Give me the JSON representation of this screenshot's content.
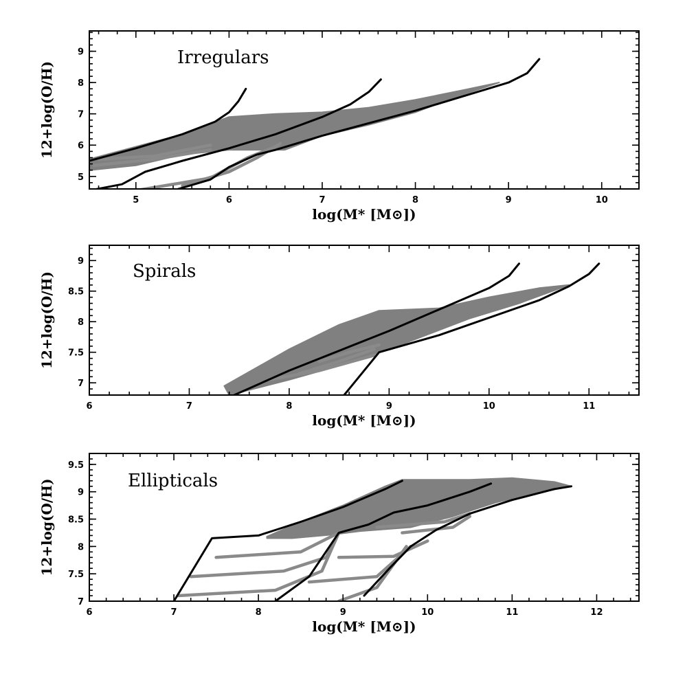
{
  "chart_data": [
    {
      "type": "line",
      "title": "Irregulars",
      "xlabel": "log(M* [M⊙])",
      "ylabel": "12+log(O/H)",
      "xlim": [
        4.5,
        10.4
      ],
      "ylim": [
        4.6,
        9.65
      ],
      "xticks": [
        5,
        6,
        7,
        8,
        9,
        10
      ],
      "yticks": [
        5,
        6,
        7,
        8,
        9
      ],
      "legend": "none",
      "series": [
        {
          "name": "track-1",
          "color": "#000000",
          "x": [
            4.5,
            5.0,
            5.5,
            5.85,
            6.0,
            6.1,
            6.18
          ],
          "y": [
            5.5,
            5.9,
            6.35,
            6.75,
            7.05,
            7.4,
            7.8
          ]
        },
        {
          "name": "track-2",
          "color": "#000000",
          "x": [
            4.5,
            4.85,
            5.1,
            5.5,
            6.0,
            6.5,
            7.0,
            7.3,
            7.5,
            7.63
          ],
          "y": [
            4.55,
            4.75,
            5.15,
            5.5,
            5.9,
            6.35,
            6.9,
            7.3,
            7.7,
            8.1
          ]
        },
        {
          "name": "track-3",
          "color": "#000000",
          "x": [
            5.4,
            5.8,
            6.0,
            6.3,
            6.5,
            7.0,
            8.0,
            9.0,
            9.2,
            9.33
          ],
          "y": [
            4.55,
            4.9,
            5.3,
            5.7,
            5.85,
            6.3,
            7.1,
            8.0,
            8.3,
            8.75
          ]
        },
        {
          "name": "grey-track-1",
          "color": "#8a8a8a",
          "x": [
            4.55,
            5.2,
            5.8
          ],
          "y": [
            5.35,
            5.55,
            5.85
          ]
        },
        {
          "name": "grey-track-2",
          "color": "#8a8a8a",
          "x": [
            4.6,
            5.2,
            5.8
          ],
          "y": [
            5.55,
            5.65,
            6.0
          ]
        },
        {
          "name": "grey-track-3",
          "color": "#8a8a8a",
          "x": [
            5.0,
            5.8,
            6.2,
            6.5
          ],
          "y": [
            4.55,
            4.95,
            5.6,
            5.95
          ]
        },
        {
          "name": "grey-track-4",
          "color": "#8a8a8a",
          "x": [
            5.5,
            6.0,
            6.3,
            6.55
          ],
          "y": [
            4.7,
            5.15,
            5.6,
            6.05
          ]
        }
      ],
      "bands": [
        {
          "name": "grey-envelope",
          "color": "#808080",
          "x": [
            4.5,
            5.5,
            6.0,
            6.5,
            7.0,
            7.5,
            8.0,
            8.5,
            8.9,
            8.4,
            8.0,
            7.5,
            7.0,
            6.6,
            6.0,
            5.5,
            5.0,
            4.5
          ],
          "y": [
            5.55,
            6.35,
            6.9,
            7.0,
            7.05,
            7.2,
            7.45,
            7.75,
            8.0,
            7.5,
            7.05,
            6.65,
            6.3,
            5.85,
            5.85,
            5.7,
            5.35,
            5.2
          ]
        }
      ]
    },
    {
      "type": "line",
      "title": "Spirals",
      "xlabel": "log(M* [M⊙])",
      "ylabel": "12+log(O/H)",
      "xlim": [
        6,
        11.5
      ],
      "ylim": [
        6.8,
        9.25
      ],
      "xticks": [
        6,
        7,
        8,
        9,
        10,
        11
      ],
      "yticks": [
        7,
        7.5,
        8,
        8.5,
        9
      ],
      "ytick_labels": [
        "7",
        "7.5",
        "8",
        "8.5",
        "9"
      ],
      "legend": "none",
      "series": [
        {
          "name": "track-1",
          "color": "#000000",
          "x": [
            7.45,
            8.0,
            9.0,
            10.0,
            10.2,
            10.3
          ],
          "y": [
            6.8,
            7.2,
            7.85,
            8.55,
            8.75,
            8.95
          ]
        },
        {
          "name": "track-2",
          "color": "#000000",
          "x": [
            8.55,
            8.9,
            9.5,
            10.5,
            10.8,
            11.0,
            11.1
          ],
          "y": [
            6.8,
            7.5,
            7.78,
            8.35,
            8.58,
            8.78,
            8.95
          ]
        },
        {
          "name": "grey-track-1",
          "color": "#8a8a8a",
          "x": [
            7.8,
            8.3,
            8.85
          ],
          "y": [
            7.05,
            7.2,
            7.45
          ]
        },
        {
          "name": "grey-track-2",
          "color": "#8a8a8a",
          "x": [
            8.1,
            8.5,
            8.85
          ],
          "y": [
            7.15,
            7.35,
            7.55
          ]
        },
        {
          "name": "grey-track-3",
          "color": "#8a8a8a",
          "x": [
            8.3,
            8.6,
            8.9
          ],
          "y": [
            7.35,
            7.5,
            7.62
          ]
        }
      ],
      "bands": [
        {
          "name": "grey-envelope",
          "color": "#808080",
          "x": [
            7.35,
            8.0,
            8.5,
            8.9,
            9.5,
            10.0,
            10.5,
            10.8,
            10.3,
            9.8,
            9.0,
            8.5,
            8.0,
            7.4
          ],
          "y": [
            6.95,
            7.55,
            7.95,
            8.18,
            8.22,
            8.4,
            8.55,
            8.6,
            8.3,
            8.05,
            7.55,
            7.28,
            7.05,
            6.8
          ]
        }
      ]
    },
    {
      "type": "line",
      "title": "Ellipticals",
      "xlabel": "log(M* [M⊙])",
      "ylabel": "12+log(O/H)",
      "xlim": [
        6,
        12.5
      ],
      "ylim": [
        7.0,
        9.7
      ],
      "xticks": [
        6,
        7,
        8,
        9,
        10,
        11,
        12
      ],
      "yticks": [
        7,
        7.5,
        8,
        8.5,
        9,
        9.5
      ],
      "ytick_labels": [
        "7",
        "7.5",
        "8",
        "8.5",
        "9",
        "9.5"
      ],
      "legend": "none",
      "series": [
        {
          "name": "track-1",
          "color": "#000000",
          "x": [
            7.0,
            7.45,
            8.0,
            8.3,
            8.5,
            9.0,
            9.5,
            9.7
          ],
          "y": [
            7.0,
            8.15,
            8.2,
            8.35,
            8.45,
            8.72,
            9.05,
            9.2
          ]
        },
        {
          "name": "track-2",
          "color": "#000000",
          "x": [
            8.2,
            8.6,
            8.95,
            9.3,
            9.6,
            10.0,
            10.5,
            10.75
          ],
          "y": [
            7.0,
            7.45,
            8.25,
            8.4,
            8.62,
            8.75,
            9.0,
            9.15
          ]
        },
        {
          "name": "track-3",
          "color": "#000000",
          "x": [
            9.25,
            9.55,
            9.8,
            10.1,
            10.5,
            11.0,
            11.5,
            11.7
          ],
          "y": [
            7.1,
            7.6,
            8.0,
            8.3,
            8.6,
            8.85,
            9.05,
            9.1
          ]
        },
        {
          "name": "grey-track-1",
          "color": "#8a8a8a",
          "x": [
            7.5,
            8.5,
            8.95
          ],
          "y": [
            7.8,
            7.9,
            8.25
          ]
        },
        {
          "name": "grey-track-2",
          "color": "#8a8a8a",
          "x": [
            7.2,
            8.3,
            8.8,
            8.95
          ],
          "y": [
            7.45,
            7.55,
            7.8,
            8.25
          ]
        },
        {
          "name": "grey-track-3",
          "color": "#8a8a8a",
          "x": [
            7.05,
            8.2,
            8.75,
            8.95
          ],
          "y": [
            7.1,
            7.2,
            7.55,
            8.25
          ]
        },
        {
          "name": "grey-track-4",
          "color": "#8a8a8a",
          "x": [
            8.95,
            9.6,
            10.0
          ],
          "y": [
            7.8,
            7.82,
            8.1
          ]
        },
        {
          "name": "grey-track-5",
          "color": "#8a8a8a",
          "x": [
            8.6,
            9.4,
            9.8
          ],
          "y": [
            7.35,
            7.45,
            8.0
          ]
        },
        {
          "name": "grey-track-6",
          "color": "#8a8a8a",
          "x": [
            8.95,
            9.4,
            9.75
          ],
          "y": [
            7.0,
            7.25,
            8.0
          ]
        },
        {
          "name": "grey-track-7",
          "color": "#8a8a8a",
          "x": [
            9.7,
            10.3,
            10.5
          ],
          "y": [
            8.25,
            8.35,
            8.55
          ]
        },
        {
          "name": "grey-track-8",
          "color": "#8a8a8a",
          "x": [
            9.4,
            10.2,
            10.5
          ],
          "y": [
            8.35,
            8.45,
            8.6
          ]
        }
      ],
      "bands": [
        {
          "name": "grey-envelope",
          "color": "#808080",
          "x": [
            8.1,
            8.5,
            9.0,
            9.5,
            9.7,
            10.5,
            11.0,
            11.5,
            11.7,
            11.2,
            10.8,
            10.3,
            9.8,
            9.2,
            8.9,
            8.4,
            8.1
          ],
          "y": [
            8.18,
            8.45,
            8.75,
            9.1,
            9.22,
            9.22,
            9.25,
            9.18,
            9.1,
            8.95,
            8.8,
            8.55,
            8.35,
            8.28,
            8.22,
            8.15,
            8.15
          ]
        }
      ]
    }
  ]
}
